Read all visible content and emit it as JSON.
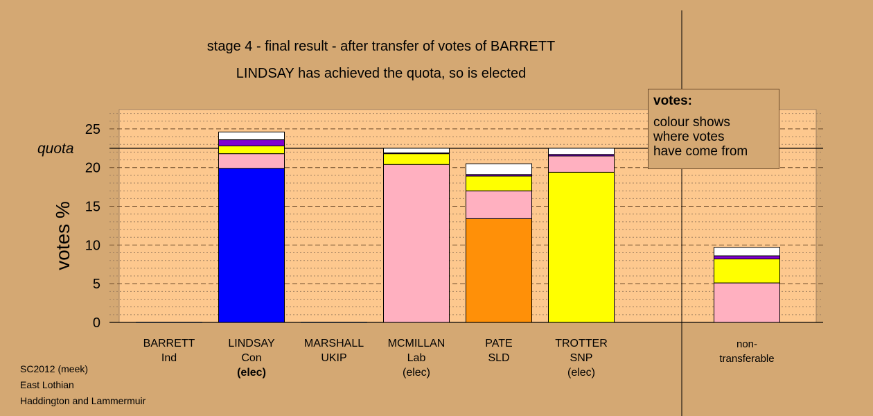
{
  "titles": {
    "line1": "stage 4 - final result - after transfer of votes of BARRETT",
    "line2": "LINDSAY has achieved the quota, so is elected"
  },
  "legend": {
    "title": "votes:",
    "text1": "colour shows",
    "text2": "where votes",
    "text3": "have come from"
  },
  "footer": {
    "line1": "SC2012 (meek)",
    "line2": "East Lothian",
    "line3": "Haddington and Lammermuir"
  },
  "colors": {
    "background": "#d4a873",
    "plot_area": "#fdc88e",
    "Con": "#0000ff",
    "Lab": "#ffb0c0",
    "SLD": "#ff9008",
    "SNP": "#ffff00",
    "UKIP": "#8000d0",
    "Ind": "#ffffff"
  },
  "chart_data": {
    "type": "bar",
    "stacked": true,
    "ylabel": "votes %",
    "ylim": [
      0,
      27.5
    ],
    "yticks": [
      0,
      5,
      10,
      15,
      20,
      25
    ],
    "quota": 22.5,
    "quota_label": "quota",
    "grid": "dashed horizontal",
    "candidates": [
      {
        "name": "BARRETT",
        "party": "Ind",
        "status": "",
        "segments": []
      },
      {
        "name": "LINDSAY",
        "party": "Con",
        "status": "(elec)",
        "status_bold": true,
        "segments": [
          {
            "source": "Con",
            "value": 19.9
          },
          {
            "source": "Lab",
            "value": 1.9
          },
          {
            "source": "SNP",
            "value": 1.0
          },
          {
            "source": "UKIP",
            "value": 0.8
          },
          {
            "source": "Ind",
            "value": 1.0
          }
        ]
      },
      {
        "name": "MARSHALL",
        "party": "UKIP",
        "status": "",
        "segments": []
      },
      {
        "name": "MCMILLAN",
        "party": "Lab",
        "status": "(elec)",
        "segments": [
          {
            "source": "Lab",
            "value": 20.4
          },
          {
            "source": "SNP",
            "value": 1.4
          },
          {
            "source": "UKIP",
            "value": 0.1
          },
          {
            "source": "Ind",
            "value": 0.6
          }
        ]
      },
      {
        "name": "PATE",
        "party": "SLD",
        "status": "",
        "segments": [
          {
            "source": "SLD",
            "value": 13.4
          },
          {
            "source": "Lab",
            "value": 3.6
          },
          {
            "source": "SNP",
            "value": 1.9
          },
          {
            "source": "UKIP",
            "value": 0.2
          },
          {
            "source": "Ind",
            "value": 1.4
          }
        ]
      },
      {
        "name": "TROTTER",
        "party": "SNP",
        "status": "(elec)",
        "segments": [
          {
            "source": "SNP",
            "value": 19.4
          },
          {
            "source": "Lab",
            "value": 2.1
          },
          {
            "source": "UKIP",
            "value": 0.2
          },
          {
            "source": "Ind",
            "value": 0.8
          }
        ]
      },
      {
        "name": "non-",
        "party": "transferable",
        "status": "",
        "segments": [
          {
            "source": "Lab",
            "value": 5.1
          },
          {
            "source": "SNP",
            "value": 3.1
          },
          {
            "source": "UKIP",
            "value": 0.4
          },
          {
            "source": "Ind",
            "value": 1.1
          }
        ]
      }
    ]
  }
}
